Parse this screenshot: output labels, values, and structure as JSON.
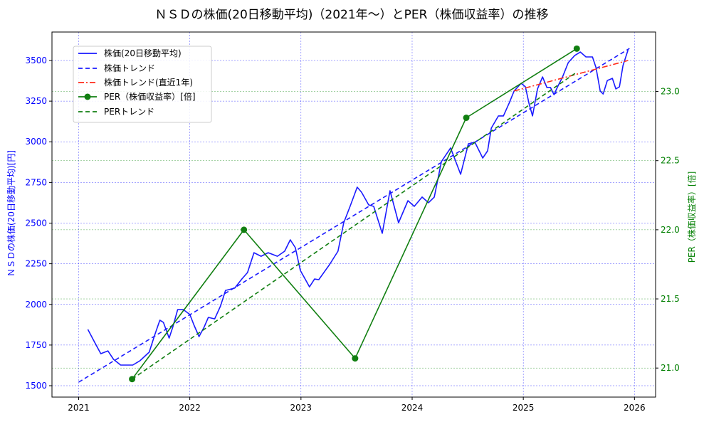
{
  "chart_data": {
    "type": "line",
    "title": "ＮＳＤの株価(20日移動平均)（2021年〜）とPER（株価収益率）の推移",
    "xlabel": "",
    "ylabel_left": "ＮＳＤの株価(20日移動平均)[円]",
    "ylabel_right": "PER（株価収益率）[倍]",
    "xlim": [
      2020.76,
      2026.19
    ],
    "ylim_left": [
      1430,
      3675
    ],
    "ylim_right": [
      20.79,
      23.43
    ],
    "x_ticks": [
      2021,
      2022,
      2023,
      2024,
      2025,
      2026
    ],
    "y_ticks_left": [
      1500,
      1750,
      2000,
      2250,
      2500,
      2750,
      3000,
      3250,
      3500
    ],
    "y_ticks_right": [
      "21.0",
      "21.5",
      "22.0",
      "22.5",
      "23.0"
    ],
    "grid": true,
    "legend_position": "top-left",
    "colors": {
      "left_axis": "#0000ff",
      "right_axis": "#007f00",
      "price": "#0000ff",
      "price_trend_recent": "#ff0000",
      "per": "#007f00"
    },
    "series": [
      {
        "name": "株価(20日移動平均)",
        "axis": "left",
        "style": "solid",
        "color": "#1a1aff",
        "x": [
          2021.083,
          2021.141,
          2021.199,
          2021.263,
          2021.314,
          2021.378,
          2021.487,
          2021.551,
          2021.635,
          2021.686,
          2021.731,
          2021.763,
          2021.814,
          2021.846,
          2021.891,
          2021.942,
          2022.0,
          2022.038,
          2022.083,
          2022.128,
          2022.167,
          2022.224,
          2022.276,
          2022.321,
          2022.404,
          2022.468,
          2022.519,
          2022.577,
          2022.641,
          2022.705,
          2022.788,
          2022.853,
          2022.904,
          2022.949,
          2022.994,
          2023.077,
          2023.122,
          2023.16,
          2023.256,
          2023.333,
          2023.385,
          2023.442,
          2023.506,
          2023.545,
          2023.609,
          2023.654,
          2023.731,
          2023.801,
          2023.878,
          2023.962,
          2024.019,
          2024.09,
          2024.147,
          2024.199,
          2024.263,
          2024.346,
          2024.436,
          2024.506,
          2024.564,
          2024.635,
          2024.679,
          2024.712,
          2024.776,
          2024.821,
          2024.872,
          2024.917,
          2024.981,
          2025.019,
          2025.051,
          2025.083,
          2025.128,
          2025.173,
          2025.212,
          2025.244,
          2025.276,
          2025.308,
          2025.353,
          2025.404,
          2025.462,
          2025.513,
          2025.564,
          2025.622,
          2025.654,
          2025.692,
          2025.718,
          2025.756,
          2025.801,
          2025.833,
          2025.865,
          2025.897,
          2025.942
        ],
        "y": [
          1846,
          1771,
          1697,
          1714,
          1662,
          1627,
          1627,
          1653,
          1706,
          1815,
          1903,
          1889,
          1793,
          1859,
          1968,
          1968,
          1938,
          1872,
          1802,
          1859,
          1920,
          1911,
          1990,
          2086,
          2100,
          2156,
          2196,
          2318,
          2296,
          2318,
          2296,
          2327,
          2397,
          2349,
          2209,
          2108,
          2156,
          2152,
          2244,
          2327,
          2502,
          2603,
          2721,
          2690,
          2612,
          2603,
          2437,
          2699,
          2502,
          2638,
          2603,
          2660,
          2625,
          2660,
          2878,
          2962,
          2800,
          2988,
          2997,
          2900,
          2944,
          3084,
          3159,
          3159,
          3237,
          3312,
          3360,
          3338,
          3237,
          3159,
          3325,
          3399,
          3334,
          3334,
          3290,
          3338,
          3399,
          3487,
          3530,
          3552,
          3522,
          3522,
          3456,
          3312,
          3294,
          3377,
          3390,
          3325,
          3338,
          3469,
          3565
        ]
      },
      {
        "name": "株価トレンド",
        "axis": "left",
        "style": "dashed",
        "color": "#1a1aff",
        "x": [
          2021.0,
          2025.955
        ],
        "y": [
          1522,
          3574
        ]
      },
      {
        "name": "株価トレンド(直近1年)",
        "axis": "left",
        "style": "dashdot",
        "color": "#ff2a1a",
        "x": [
          2024.917,
          2025.942
        ],
        "y": [
          3312,
          3500
        ]
      },
      {
        "name": "PER（株価収益率）[倍]",
        "axis": "right",
        "style": "solid-marker",
        "color": "#117f11",
        "x": [
          2021.481,
          2022.487,
          2023.487,
          2024.487,
          2025.481
        ],
        "y": [
          20.92,
          22.0,
          21.07,
          22.81,
          23.31
        ]
      },
      {
        "name": "PERトレンド",
        "axis": "right",
        "style": "dashed",
        "color": "#117f11",
        "x": [
          2021.481,
          2025.481
        ],
        "y": [
          20.92,
          23.14
        ]
      }
    ]
  }
}
